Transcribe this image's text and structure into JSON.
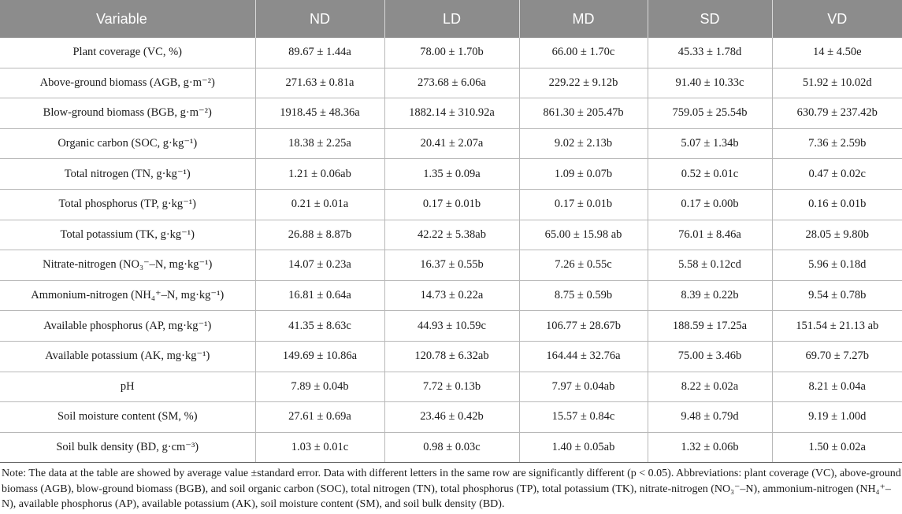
{
  "table": {
    "headers": [
      "Variable",
      "ND",
      "LD",
      "MD",
      "SD",
      "VD"
    ],
    "rows": [
      {
        "variable": "Plant coverage (VC, %)",
        "values": [
          "89.67 ± 1.44a",
          "78.00 ± 1.70b",
          "66.00 ± 1.70c",
          "45.33 ± 1.78d",
          "14 ± 4.50e"
        ]
      },
      {
        "variable": "Above-ground biomass (AGB, g·m⁻²)",
        "values": [
          "271.63 ± 0.81a",
          "273.68 ± 6.06a",
          "229.22 ± 9.12b",
          "91.40 ± 10.33c",
          "51.92 ± 10.02d"
        ]
      },
      {
        "variable": "Blow-ground biomass (BGB, g·m⁻²)",
        "values": [
          "1918.45 ± 48.36a",
          "1882.14 ± 310.92a",
          "861.30 ± 205.47b",
          "759.05 ± 25.54b",
          "630.79 ± 237.42b"
        ]
      },
      {
        "variable": "Organic carbon (SOC, g·kg⁻¹)",
        "values": [
          "18.38 ± 2.25a",
          "20.41 ± 2.07a",
          "9.02 ± 2.13b",
          "5.07 ± 1.34b",
          "7.36 ± 2.59b"
        ]
      },
      {
        "variable": "Total nitrogen (TN, g·kg⁻¹)",
        "values": [
          "1.21 ± 0.06ab",
          "1.35 ± 0.09a",
          "1.09 ± 0.07b",
          "0.52 ± 0.01c",
          "0.47 ± 0.02c"
        ]
      },
      {
        "variable": "Total phosphorus (TP, g·kg⁻¹)",
        "values": [
          "0.21 ± 0.01a",
          "0.17 ± 0.01b",
          "0.17 ± 0.01b",
          "0.17 ± 0.00b",
          "0.16 ± 0.01b"
        ]
      },
      {
        "variable": "Total potassium (TK, g·kg⁻¹)",
        "values": [
          "26.88 ± 8.87b",
          "42.22 ± 5.38ab",
          "65.00 ± 15.98 ab",
          "76.01 ± 8.46a",
          "28.05 ± 9.80b"
        ]
      },
      {
        "variable": "Nitrate-nitrogen (NO₃⁻–N, mg·kg⁻¹)",
        "values": [
          "14.07 ± 0.23a",
          "16.37 ± 0.55b",
          "7.26 ± 0.55c",
          "5.58 ± 0.12cd",
          "5.96 ± 0.18d"
        ]
      },
      {
        "variable": "Ammonium-nitrogen (NH₄⁺–N, mg·kg⁻¹)",
        "values": [
          "16.81 ± 0.64a",
          "14.73 ± 0.22a",
          "8.75 ± 0.59b",
          "8.39 ± 0.22b",
          "9.54 ± 0.78b"
        ]
      },
      {
        "variable": "Available phosphorus (AP, mg·kg⁻¹)",
        "values": [
          "41.35 ± 8.63c",
          "44.93 ± 10.59c",
          "106.77 ± 28.67b",
          "188.59 ± 17.25a",
          "151.54 ± 21.13 ab"
        ]
      },
      {
        "variable": "Available potassium (AK, mg·kg⁻¹)",
        "values": [
          "149.69 ± 10.86a",
          "120.78 ± 6.32ab",
          "164.44 ± 32.76a",
          "75.00 ± 3.46b",
          "69.70 ± 7.27b"
        ]
      },
      {
        "variable": "pH",
        "values": [
          "7.89 ± 0.04b",
          "7.72 ± 0.13b",
          "7.97 ± 0.04ab",
          "8.22 ± 0.02a",
          "8.21 ± 0.04a"
        ]
      },
      {
        "variable": "Soil moisture content (SM, %)",
        "values": [
          "27.61 ± 0.69a",
          "23.46 ± 0.42b",
          "15.57 ± 0.84c",
          "9.48 ± 0.79d",
          "9.19 ± 1.00d"
        ]
      },
      {
        "variable": "Soil bulk density (BD, g·cm⁻³)",
        "values": [
          "1.03 ± 0.01c",
          "0.98 ± 0.03c",
          "1.40 ± 0.05ab",
          "1.32 ± 0.06b",
          "1.50 ± 0.02a"
        ]
      }
    ]
  },
  "note": "Note: The data at the table are showed by average value ±standard error. Data with different letters in the same row are significantly different (p < 0.05). Abbreviations: plant coverage (VC), above-ground biomass (AGB), blow-ground biomass (BGB), and soil organic carbon (SOC), total nitrogen (TN), total phosphorus (TP), total potassium (TK), nitrate-nitrogen (NO₃⁻–N), ammonium-nitrogen (NH₄⁺–N), available phosphorus (AP), available potassium (AK), soil moisture content (SM), and soil bulk density (BD).",
  "colors": {
    "header_bg": "#8c8c8c",
    "header_text": "#ffffff",
    "grid": "#b8b8b8"
  }
}
